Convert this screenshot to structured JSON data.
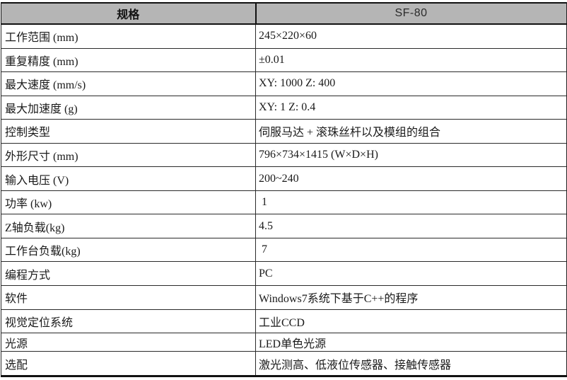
{
  "table": {
    "header": {
      "spec_label": "规格",
      "model_label": "SF-80"
    },
    "rows": [
      {
        "label": "工作范围 (mm)",
        "value": "245×220×60"
      },
      {
        "label": "重复精度 (mm)",
        "value": "±0.01"
      },
      {
        "label": "最大速度 (mm/s)",
        "value": "XY: 1000 Z: 400"
      },
      {
        "label": "最大加速度 (g)",
        "value": "XY: 1 Z: 0.4"
      },
      {
        "label": "控制类型",
        "value": "伺服马达 + 滚珠丝杆以及模组的组合"
      },
      {
        "label": "外形尺寸 (mm)",
        "value": "796×734×1415 (W×D×H)"
      },
      {
        "label": "输入电压 (V)",
        "value": "200~240"
      },
      {
        "label": "功率 (kw)",
        "value": " 1"
      },
      {
        "label": "Z轴负载(kg)",
        "value": "4.5"
      },
      {
        "label": "工作台负载(kg)",
        "value": " 7"
      },
      {
        "label": "编程方式",
        "value": "PC"
      },
      {
        "label": "软件",
        "value": "Windows7系统下基于C++的程序"
      },
      {
        "label": "视觉定位系统",
        "value": "工业CCD"
      },
      {
        "label": "光源",
        "value": "LED单色光源"
      },
      {
        "label": "选配",
        "value": "激光测高、低液位传感器、接触传感器"
      }
    ],
    "colors": {
      "header_background": "#b5b5b5",
      "border": "#111111",
      "text": "#1a1a1a"
    }
  }
}
